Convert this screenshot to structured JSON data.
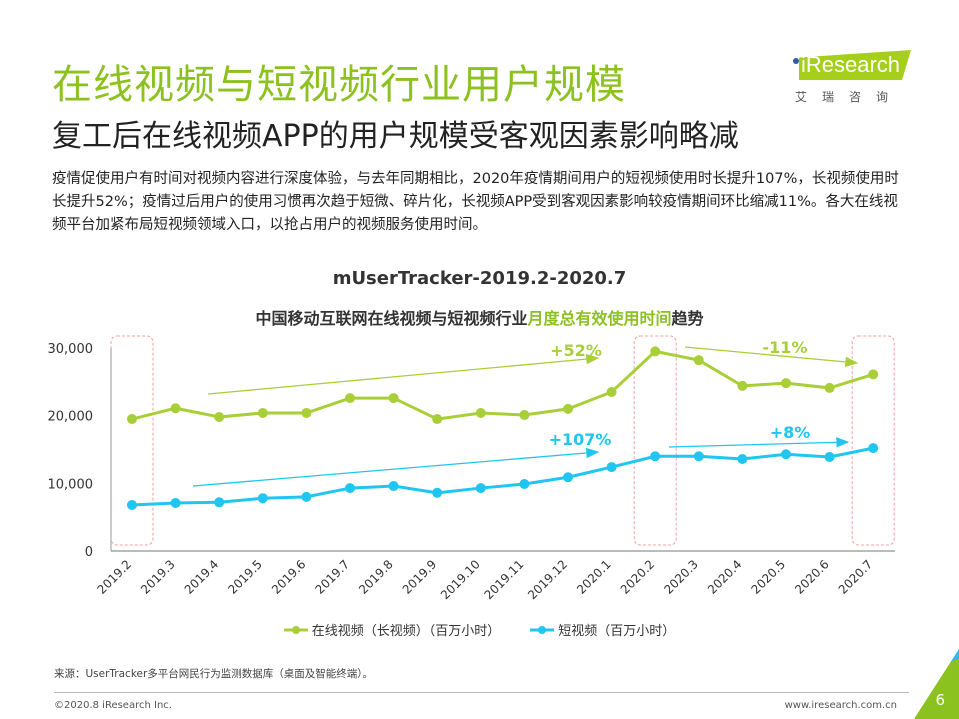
{
  "header": {
    "title": "在线视频与短视频行业用户规模",
    "subtitle": "复工后在线视频APP的用户规模受客观因素影响略减",
    "body": "疫情促使用户有时间对视频内容进行深度体验，与去年同期相比，2020年疫情期间用户的短视频使用时长提升107%，长视频使用时长提升52%；疫情过后用户的使用习惯再次趋于短微、碎片化，长视频APP受到客观因素影响较疫情期间环比缩减11%。各大在线视频平台加紧布局短视频领域入口，以抢占用户的视频服务使用时间。"
  },
  "logo": {
    "text": "iResearch",
    "cn": "艾瑞咨询"
  },
  "chart_data": {
    "type": "line",
    "title": "mUserTracker-2019.2-2020.7",
    "subtitle_parts": [
      "中国移动互联网在线视频与短视频行业",
      "月度总有效使用时间",
      "趋势"
    ],
    "categories": [
      "2019.2",
      "2019.3",
      "2019.4",
      "2019.5",
      "2019.6",
      "2019.7",
      "2019.8",
      "2019.9",
      "2019.10",
      "2019.11",
      "2019.12",
      "2020.1",
      "2020.2",
      "2020.3",
      "2020.4",
      "2020.5",
      "2020.6",
      "2020.7"
    ],
    "ylim": [
      0,
      30000
    ],
    "yticks": [
      "0",
      "10,000",
      "20,000",
      "30,000"
    ],
    "series": [
      {
        "name": "在线视频（长视频）（百万小时）",
        "color": "#a9cf38",
        "values": [
          19500,
          21100,
          19800,
          20400,
          20400,
          22600,
          22600,
          19500,
          20400,
          20100,
          21000,
          23500,
          29500,
          28200,
          24400,
          24800,
          24100,
          26100
        ]
      },
      {
        "name": "短视频（百万小时）",
        "color": "#1fc6f0",
        "values": [
          6800,
          7100,
          7200,
          7800,
          8000,
          9300,
          9600,
          8600,
          9300,
          9900,
          10900,
          12400,
          14000,
          14000,
          13600,
          14300,
          13900,
          15200
        ]
      }
    ],
    "annotations": [
      {
        "text": "+52%",
        "color": "#a9cf38"
      },
      {
        "text": "+107%",
        "color": "#1fc6f0"
      },
      {
        "text": "-11%",
        "color": "#a9cf38"
      },
      {
        "text": "+8%",
        "color": "#1fc6f0"
      }
    ],
    "highlighted_categories": [
      "2019.2",
      "2020.2",
      "2020.7"
    ],
    "legend": "bottom",
    "grid": false
  },
  "footer": {
    "source": "来源：UserTracker多平台网民行为监测数据库（桌面及智能终端）。",
    "copyright": "©2020.8 iResearch Inc.",
    "url": "www.iresearch.com.cn",
    "page": "6"
  }
}
